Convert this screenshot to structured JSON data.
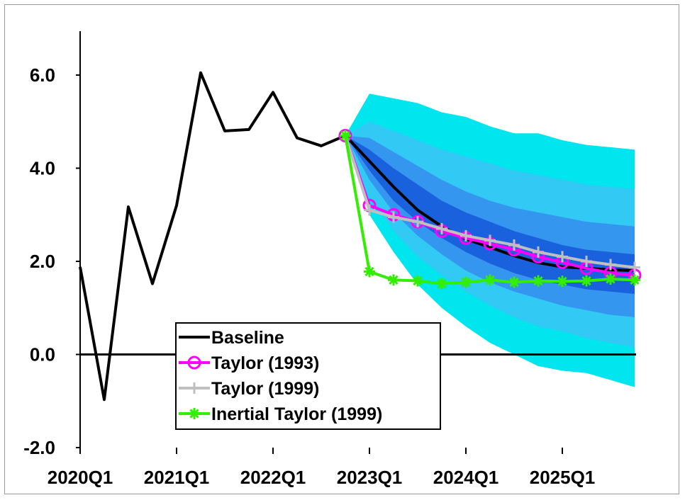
{
  "chart_data": {
    "type": "line",
    "title": "",
    "xlabel": "",
    "ylabel": "",
    "x": [
      "2020Q1",
      "2020Q2",
      "2020Q3",
      "2020Q4",
      "2021Q1",
      "2021Q2",
      "2021Q3",
      "2021Q4",
      "2022Q1",
      "2022Q2",
      "2022Q3",
      "2022Q4",
      "2023Q1",
      "2023Q2",
      "2023Q3",
      "2023Q4",
      "2024Q1",
      "2024Q2",
      "2024Q3",
      "2024Q4",
      "2025Q1",
      "2025Q2",
      "2025Q3",
      "2025Q4"
    ],
    "x_tick_labels": [
      "2020Q1",
      "2021Q1",
      "2022Q1",
      "2023Q1",
      "2024Q1",
      "2025Q1"
    ],
    "y_tick_labels": [
      "-2.0",
      "0.0",
      "2.0",
      "4.0",
      "6.0"
    ],
    "ylim": [
      -2.0,
      6.0
    ],
    "grid": false,
    "legend_position": "bottom-center",
    "series": [
      {
        "name": "Baseline",
        "color": "#000000",
        "marker": "none",
        "values": [
          1.88,
          -0.97,
          3.17,
          1.52,
          3.2,
          6.05,
          4.8,
          4.83,
          5.63,
          4.65,
          4.48,
          4.7,
          4.15,
          3.6,
          3.1,
          2.75,
          2.48,
          2.3,
          2.12,
          1.97,
          1.88,
          1.85,
          1.82,
          1.8
        ]
      },
      {
        "name": "Taylor (1993)",
        "color": "#ff00ff",
        "marker": "circle",
        "values": [
          null,
          null,
          null,
          null,
          null,
          null,
          null,
          null,
          null,
          null,
          null,
          4.7,
          3.2,
          3.0,
          2.85,
          2.65,
          2.5,
          2.38,
          2.25,
          2.1,
          1.98,
          1.85,
          1.75,
          1.7
        ]
      },
      {
        "name": "Taylor (1999)",
        "color": "#bfbfbf",
        "marker": "plus",
        "values": [
          null,
          null,
          null,
          null,
          null,
          null,
          null,
          null,
          null,
          null,
          null,
          4.7,
          3.1,
          2.95,
          2.85,
          2.7,
          2.55,
          2.45,
          2.35,
          2.2,
          2.1,
          2.0,
          1.93,
          1.87
        ]
      },
      {
        "name": "Inertial Taylor (1999)",
        "color": "#33ee00",
        "marker": "asterisk",
        "values": [
          null,
          null,
          null,
          null,
          null,
          null,
          null,
          null,
          null,
          null,
          null,
          4.7,
          1.78,
          1.6,
          1.58,
          1.52,
          1.55,
          1.6,
          1.55,
          1.58,
          1.57,
          1.58,
          1.62,
          1.6
        ]
      }
    ],
    "fan_bands": {
      "x_start": "2022Q4",
      "colors": [
        "#00e5ee",
        "#33c9f5",
        "#3596f0",
        "#1a62dd"
      ],
      "outer": {
        "upper": [
          4.7,
          5.6,
          5.5,
          5.4,
          5.2,
          5.1,
          4.9,
          4.75,
          4.75,
          4.6,
          4.5,
          4.45,
          4.4
        ],
        "lower": [
          4.7,
          3.0,
          2.2,
          1.5,
          1.0,
          0.6,
          0.25,
          0.0,
          -0.25,
          -0.35,
          -0.4,
          -0.55,
          -0.7
        ]
      },
      "band2": {
        "upper": [
          4.7,
          5.0,
          4.8,
          4.6,
          4.4,
          4.25,
          4.1,
          3.95,
          3.85,
          3.75,
          3.65,
          3.6,
          3.55
        ],
        "lower": [
          4.7,
          3.4,
          2.65,
          2.1,
          1.7,
          1.35,
          1.05,
          0.8,
          0.6,
          0.5,
          0.35,
          0.25,
          0.15
        ]
      },
      "band3": {
        "upper": [
          4.7,
          4.65,
          4.35,
          4.05,
          3.75,
          3.5,
          3.3,
          3.15,
          3.05,
          2.95,
          2.85,
          2.8,
          2.75
        ],
        "lower": [
          4.7,
          3.75,
          3.05,
          2.55,
          2.15,
          1.8,
          1.55,
          1.35,
          1.2,
          1.05,
          0.95,
          0.85,
          0.8
        ]
      },
      "inner": {
        "upper": [
          4.7,
          4.4,
          4.0,
          3.65,
          3.3,
          3.05,
          2.85,
          2.65,
          2.5,
          2.35,
          2.25,
          2.2,
          2.15
        ],
        "lower": [
          4.7,
          3.95,
          3.3,
          2.85,
          2.5,
          2.2,
          1.95,
          1.75,
          1.6,
          1.5,
          1.4,
          1.35,
          1.3
        ]
      }
    }
  }
}
